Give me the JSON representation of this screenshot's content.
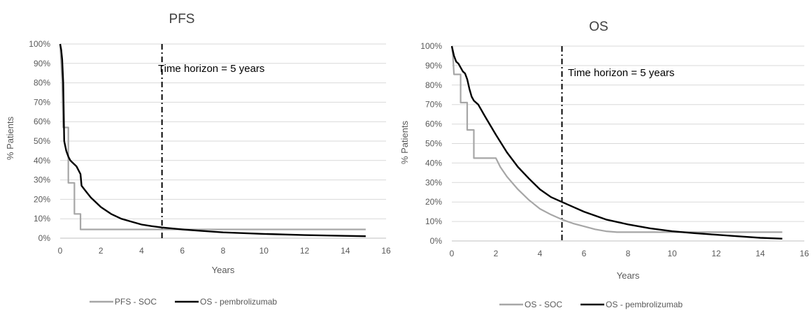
{
  "chart_data": [
    {
      "type": "line",
      "title": "PFS",
      "xlabel": "Years",
      "ylabel": "% Patients",
      "xlim": [
        0,
        16
      ],
      "ylim": [
        0,
        100
      ],
      "x_ticks": [
        "0",
        "2",
        "4",
        "6",
        "8",
        "10",
        "12",
        "14",
        "16"
      ],
      "y_ticks": [
        "0%",
        "10%",
        "20%",
        "30%",
        "40%",
        "50%",
        "60%",
        "70%",
        "80%",
        "90%",
        "100%"
      ],
      "grid": "horizontal",
      "legend_position": "bottom",
      "reference_line": {
        "x": 5,
        "style": "dash-dot",
        "label": "Time horizon = 5 years"
      },
      "series": [
        {
          "name": "PFS - SOC",
          "color": "#a6a6a6",
          "x": [
            0,
            0.1,
            0.15,
            0.2,
            0.2,
            0.4,
            0.4,
            0.7,
            0.7,
            1.0,
            1.0,
            15
          ],
          "y": [
            100,
            80,
            57,
            57,
            57,
            57,
            28.5,
            28.5,
            12.5,
            12.5,
            4.5,
            4.5
          ]
        },
        {
          "name": "OS - pembrolizumab",
          "color": "#000000",
          "x": [
            0,
            0.05,
            0.1,
            0.15,
            0.2,
            0.3,
            0.4,
            0.5,
            0.6,
            0.8,
            0.9,
            1.0,
            1.05,
            1.2,
            1.5,
            2,
            2.5,
            3,
            3.5,
            4,
            4.5,
            5,
            6,
            7,
            8,
            10,
            12,
            14,
            15
          ],
          "y": [
            100,
            97,
            92,
            80,
            50,
            45,
            42,
            40,
            39,
            37,
            35,
            33,
            27,
            25,
            21,
            16,
            12.5,
            10,
            8.5,
            7,
            6.2,
            5.5,
            4.5,
            3.7,
            3,
            2.2,
            1.6,
            1.2,
            1
          ]
        }
      ]
    },
    {
      "type": "line",
      "title": "OS",
      "xlabel": "Years",
      "ylabel": "% Patients",
      "xlim": [
        0,
        16
      ],
      "ylim": [
        0,
        100
      ],
      "x_ticks": [
        "0",
        "2",
        "4",
        "6",
        "8",
        "10",
        "12",
        "14",
        "16"
      ],
      "y_ticks": [
        "0%",
        "10%",
        "20%",
        "30%",
        "40%",
        "50%",
        "60%",
        "70%",
        "80%",
        "90%",
        "100%"
      ],
      "grid": "horizontal",
      "legend_position": "bottom",
      "reference_line": {
        "x": 5,
        "style": "dash-dot",
        "label": "Time horizon = 5 years"
      },
      "series": [
        {
          "name": "OS - SOC",
          "color": "#a6a6a6",
          "x": [
            0,
            0.05,
            0.1,
            0.1,
            0.4,
            0.4,
            0.7,
            0.7,
            1.0,
            1.0,
            2.0,
            2.2,
            2.5,
            3,
            3.5,
            4,
            4.5,
            5,
            5.5,
            6,
            6.5,
            7,
            7.5,
            15
          ],
          "y": [
            100,
            95,
            85.5,
            85.5,
            85.5,
            71,
            71,
            57,
            57,
            42.5,
            42.5,
            38,
            33,
            26.5,
            21,
            16.5,
            13.5,
            11,
            9,
            7.5,
            6,
            5,
            4.5,
            4.5
          ]
        },
        {
          "name": "OS - pembrolizumab",
          "color": "#000000",
          "x": [
            0,
            0.1,
            0.2,
            0.3,
            0.4,
            0.5,
            0.6,
            0.7,
            0.8,
            0.9,
            1.0,
            1.2,
            1.5,
            2,
            2.5,
            3,
            3.5,
            4,
            4.5,
            5,
            5.5,
            6,
            7,
            8,
            9,
            10,
            11,
            12,
            13,
            14,
            15
          ],
          "y": [
            100,
            95,
            92,
            91,
            89,
            87,
            86,
            83,
            78,
            74,
            72,
            70,
            64,
            54.5,
            45.5,
            38,
            32,
            26.5,
            22.5,
            20,
            17.5,
            15,
            11,
            8.5,
            6.5,
            5,
            4,
            3.2,
            2.4,
            1.6,
            1.2
          ]
        }
      ]
    }
  ]
}
